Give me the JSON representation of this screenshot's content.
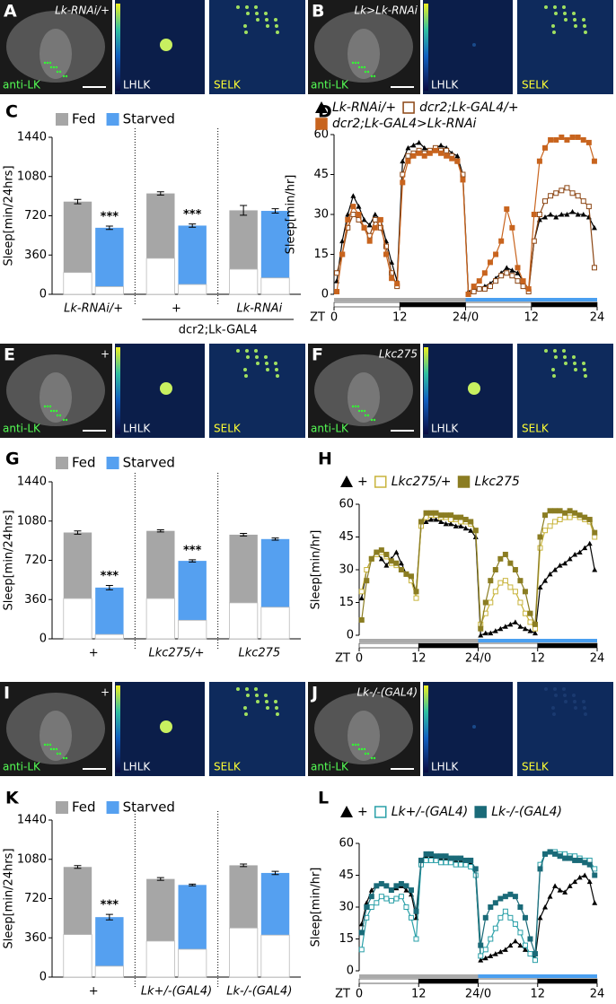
{
  "image_panels": [
    {
      "panel": "A",
      "genotype": "Lk-RNAi/+",
      "stain": "anti-LK",
      "left": "LHLK",
      "right": "SELK"
    },
    {
      "panel": "B",
      "genotype": "Lk>Lk-RNAi",
      "stain": "anti-LK",
      "left": "LHLK",
      "right": "SELK"
    },
    {
      "panel": "E",
      "genotype": "+",
      "stain": "anti-LK",
      "left": "LHLK",
      "right": "SELK"
    },
    {
      "panel": "F",
      "genotype": "Lkc275",
      "stain": "anti-LK",
      "left": "LHLK",
      "right": "SELK"
    },
    {
      "panel": "I",
      "genotype": "+",
      "stain": "anti-LK",
      "left": "LHLK",
      "right": "SELK"
    },
    {
      "panel": "J",
      "genotype": "Lk-/-(GAL4)",
      "stain": "anti-LK",
      "left": "LHLK",
      "right": "SELK"
    }
  ],
  "chart_data": [
    {
      "type": "bar",
      "panel": "C",
      "ylabel": "Sleep[min/24hrs]",
      "categories": [
        "Lk-RNAi/+",
        "+",
        "Lk-RNAi"
      ],
      "group_label": "dcr2;Lk-GAL4",
      "ylim": [
        0,
        1440
      ],
      "yticks": [
        0,
        360,
        720,
        1080,
        1440
      ],
      "legend": "top-left",
      "series": [
        {
          "name": "Fed",
          "color": "#a6a6a6",
          "values": [
            850,
            925,
            770
          ],
          "errors": [
            20,
            15,
            45
          ],
          "day_values": [
            200,
            330,
            230
          ]
        },
        {
          "name": "Starved",
          "color": "#55a0f0",
          "values": [
            610,
            630,
            765
          ],
          "errors": [
            15,
            15,
            20
          ],
          "day_values": [
            70,
            90,
            150
          ],
          "significance": [
            "***",
            "***",
            null
          ]
        }
      ]
    },
    {
      "type": "line",
      "panel": "D",
      "ylabel": "Sleep[min/hr]",
      "xlabel": "ZT",
      "x": [
        0.5,
        1.5,
        2.5,
        3.5,
        4.5,
        5.5,
        6.5,
        7.5,
        8.5,
        9.5,
        10.5,
        11.5,
        12.5,
        13.5,
        14.5,
        15.5,
        16.5,
        17.5,
        18.5,
        19.5,
        20.5,
        21.5,
        22.5,
        23.5,
        24.5,
        25.5,
        26.5,
        27.5,
        28.5,
        29.5,
        30.5,
        31.5,
        32.5,
        33.5,
        34.5,
        35.5,
        36.5,
        37.5,
        38.5,
        39.5,
        40.5,
        41.5,
        42.5,
        43.5,
        44.5,
        45.5,
        46.5,
        47.5
      ],
      "xlim": [
        0,
        48
      ],
      "xticks": [
        0,
        12,
        {
          "value": 24,
          "label": "24/0"
        },
        {
          "value": 36,
          "label": "12"
        },
        {
          "value": 48,
          "label": "24"
        }
      ],
      "ylim": [
        0,
        60
      ],
      "yticks": [
        0,
        15,
        30,
        45,
        60
      ],
      "series": [
        {
          "name": "Lk-RNAi/+",
          "color": "#000000",
          "marker": "triangle",
          "values": [
            5,
            20,
            30,
            37,
            33,
            28,
            26,
            30,
            28,
            20,
            12,
            5,
            50,
            55,
            56,
            57,
            55,
            54,
            55,
            56,
            55,
            53,
            52,
            45,
            1,
            2,
            2,
            3,
            4,
            6,
            8,
            10,
            9,
            8,
            5,
            2,
            20,
            28,
            29,
            30,
            29,
            30,
            30,
            31,
            30,
            30,
            29,
            25
          ]
        },
        {
          "name": "dcr2;Lk-GAL4/+",
          "color": "#8b4513",
          "marker": "open-square",
          "values": [
            8,
            15,
            25,
            30,
            28,
            25,
            22,
            28,
            25,
            18,
            8,
            3,
            45,
            52,
            53,
            54,
            53,
            54,
            55,
            54,
            54,
            52,
            50,
            45,
            0,
            1,
            2,
            2,
            3,
            5,
            7,
            8,
            7,
            5,
            3,
            1,
            20,
            30,
            35,
            37,
            38,
            39,
            40,
            38,
            37,
            35,
            33,
            10
          ]
        },
        {
          "name": "dcr2;Lk-GAL4>Lk-RNAi",
          "color": "#c8641e",
          "marker": "square",
          "values": [
            1,
            15,
            28,
            33,
            30,
            25,
            20,
            25,
            28,
            15,
            6,
            4,
            42,
            50,
            52,
            53,
            52,
            53,
            54,
            53,
            52,
            51,
            50,
            43,
            0,
            3,
            5,
            8,
            12,
            15,
            20,
            32,
            25,
            10,
            5,
            2,
            30,
            50,
            55,
            58,
            58,
            59,
            58,
            59,
            59,
            58,
            57,
            50
          ]
        }
      ]
    },
    {
      "type": "bar",
      "panel": "G",
      "ylabel": "Sleep[min/24hrs]",
      "categories": [
        "+",
        "Lkc275/+",
        "Lkc275"
      ],
      "ylim": [
        0,
        1440
      ],
      "yticks": [
        0,
        360,
        720,
        1080,
        1440
      ],
      "legend": "top-left",
      "series": [
        {
          "name": "Fed",
          "color": "#a6a6a6",
          "values": [
            975,
            990,
            955
          ],
          "errors": [
            15,
            10,
            12
          ],
          "day_values": [
            370,
            370,
            330
          ]
        },
        {
          "name": "Starved",
          "color": "#55a0f0",
          "values": [
            470,
            715,
            915
          ],
          "errors": [
            20,
            10,
            10
          ],
          "day_values": [
            40,
            170,
            290
          ],
          "significance": [
            "***",
            "***",
            null
          ]
        }
      ]
    },
    {
      "type": "line",
      "panel": "H",
      "ylabel": "Sleep[min/hr]",
      "xlabel": "ZT",
      "x": [
        0.5,
        1.5,
        2.5,
        3.5,
        4.5,
        5.5,
        6.5,
        7.5,
        8.5,
        9.5,
        10.5,
        11.5,
        12.5,
        13.5,
        14.5,
        15.5,
        16.5,
        17.5,
        18.5,
        19.5,
        20.5,
        21.5,
        22.5,
        23.5,
        24.5,
        25.5,
        26.5,
        27.5,
        28.5,
        29.5,
        30.5,
        31.5,
        32.5,
        33.5,
        34.5,
        35.5,
        36.5,
        37.5,
        38.5,
        39.5,
        40.5,
        41.5,
        42.5,
        43.5,
        44.5,
        45.5,
        46.5,
        47.5
      ],
      "xlim": [
        0,
        48
      ],
      "xticks": [
        0,
        12,
        {
          "value": 24,
          "label": "24/0"
        },
        {
          "value": 36,
          "label": "12"
        },
        {
          "value": 48,
          "label": "24"
        }
      ],
      "ylim": [
        0,
        60
      ],
      "yticks": [
        0,
        15,
        30,
        45,
        60
      ],
      "series": [
        {
          "name": "+",
          "color": "#000000",
          "marker": "triangle",
          "values": [
            17,
            30,
            35,
            38,
            35,
            32,
            35,
            38,
            33,
            28,
            25,
            20,
            50,
            52,
            53,
            53,
            52,
            51,
            51,
            50,
            50,
            49,
            48,
            45,
            0,
            1,
            1,
            2,
            3,
            4,
            5,
            6,
            4,
            3,
            2,
            1,
            22,
            25,
            28,
            30,
            32,
            33,
            35,
            37,
            38,
            40,
            42,
            30
          ]
        },
        {
          "name": "Lkc275/+",
          "color": "#c8b43c",
          "marker": "open-square",
          "values": [
            20,
            30,
            35,
            37,
            38,
            36,
            33,
            32,
            30,
            28,
            25,
            17,
            50,
            54,
            55,
            55,
            54,
            54,
            53,
            53,
            52,
            52,
            51,
            48,
            5,
            10,
            15,
            20,
            24,
            25,
            22,
            20,
            15,
            10,
            6,
            3,
            40,
            48,
            50,
            52,
            53,
            54,
            54,
            55,
            54,
            53,
            52,
            45
          ]
        },
        {
          "name": "Lkc275",
          "color": "#8b7d22",
          "marker": "square",
          "values": [
            7,
            25,
            35,
            38,
            39,
            37,
            34,
            33,
            30,
            28,
            27,
            20,
            52,
            56,
            56,
            56,
            55,
            55,
            55,
            54,
            54,
            53,
            52,
            48,
            3,
            15,
            25,
            30,
            35,
            37,
            33,
            30,
            25,
            20,
            10,
            5,
            45,
            55,
            57,
            57,
            57,
            56,
            57,
            56,
            55,
            54,
            53,
            47
          ]
        }
      ]
    },
    {
      "type": "bar",
      "panel": "K",
      "ylabel": "Sleep[min/24hrs]",
      "categories": [
        "+",
        "Lk+/-(GAL4)",
        "Lk-/-(GAL4)"
      ],
      "ylim": [
        0,
        1440
      ],
      "yticks": [
        0,
        360,
        720,
        1080,
        1440
      ],
      "legend": "top-left",
      "series": [
        {
          "name": "Fed",
          "color": "#a6a6a6",
          "values": [
            1010,
            900,
            1025
          ],
          "errors": [
            12,
            12,
            12
          ],
          "day_values": [
            390,
            330,
            450
          ]
        },
        {
          "name": "Starved",
          "color": "#55a0f0",
          "values": [
            550,
            845,
            955
          ],
          "errors": [
            25,
            8,
            15
          ],
          "day_values": [
            100,
            255,
            385
          ],
          "significance": [
            "***",
            null,
            null
          ]
        }
      ]
    },
    {
      "type": "line",
      "panel": "L",
      "ylabel": "Sleep[min/hr]",
      "xlabel": "ZT",
      "x": [
        0.5,
        1.5,
        2.5,
        3.5,
        4.5,
        5.5,
        6.5,
        7.5,
        8.5,
        9.5,
        10.5,
        11.5,
        12.5,
        13.5,
        14.5,
        15.5,
        16.5,
        17.5,
        18.5,
        19.5,
        20.5,
        21.5,
        22.5,
        23.5,
        24.5,
        25.5,
        26.5,
        27.5,
        28.5,
        29.5,
        30.5,
        31.5,
        32.5,
        33.5,
        34.5,
        35.5,
        36.5,
        37.5,
        38.5,
        39.5,
        40.5,
        41.5,
        42.5,
        43.5,
        44.5,
        45.5,
        46.5,
        47.5
      ],
      "xlim": [
        0,
        48
      ],
      "xticks": [
        0,
        12,
        {
          "value": 24,
          "label": "24/0"
        },
        {
          "value": 36,
          "label": "12"
        },
        {
          "value": 48,
          "label": "24"
        }
      ],
      "ylim": [
        0,
        60
      ],
      "yticks": [
        0,
        15,
        30,
        45,
        60
      ],
      "series": [
        {
          "name": "+",
          "color": "#000000",
          "marker": "triangle",
          "values": [
            22,
            32,
            38,
            40,
            41,
            40,
            38,
            39,
            40,
            38,
            36,
            25,
            50,
            54,
            54,
            53,
            53,
            53,
            53,
            52,
            52,
            52,
            51,
            45,
            5,
            6,
            7,
            8,
            9,
            10,
            12,
            14,
            12,
            10,
            8,
            6,
            25,
            30,
            35,
            40,
            38,
            37,
            40,
            42,
            44,
            45,
            42,
            32
          ]
        },
        {
          "name": "Lk+/-(GAL4)",
          "color": "#2aa0a8",
          "marker": "open-square",
          "values": [
            10,
            25,
            30,
            32,
            35,
            34,
            33,
            34,
            35,
            30,
            25,
            15,
            50,
            52,
            52,
            52,
            51,
            51,
            51,
            50,
            50,
            50,
            49,
            45,
            7,
            10,
            15,
            20,
            25,
            28,
            25,
            22,
            18,
            12,
            8,
            5,
            50,
            55,
            56,
            56,
            55,
            55,
            54,
            54,
            53,
            52,
            52,
            48
          ]
        },
        {
          "name": "Lk-/-(GAL4)",
          "color": "#1a6a78",
          "marker": "square",
          "values": [
            18,
            30,
            35,
            40,
            41,
            40,
            38,
            40,
            41,
            40,
            38,
            28,
            52,
            55,
            55,
            54,
            54,
            54,
            53,
            53,
            53,
            52,
            52,
            48,
            12,
            25,
            30,
            32,
            34,
            35,
            36,
            35,
            30,
            25,
            15,
            8,
            48,
            55,
            56,
            55,
            54,
            53,
            53,
            52,
            52,
            51,
            50,
            45
          ]
        }
      ]
    }
  ]
}
